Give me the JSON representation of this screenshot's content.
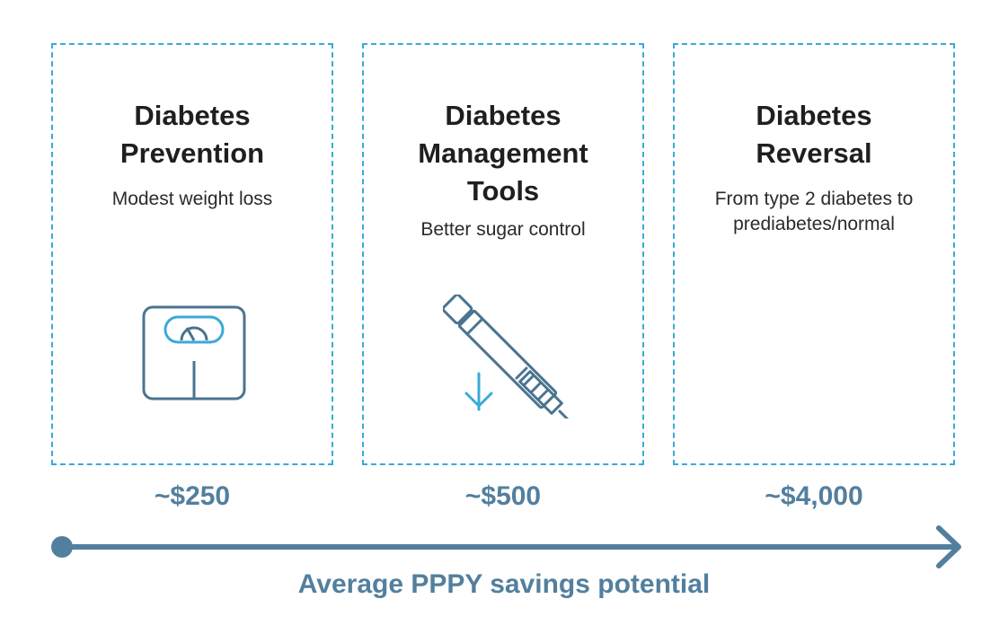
{
  "colors": {
    "card_border": "#3aaad8",
    "accent_blue": "#3aaad8",
    "icon_dark": "#4a7490",
    "timeline": "#537f9e",
    "text_dark": "#1f1f1f"
  },
  "cards": [
    {
      "title_lines": [
        "Diabetes",
        "Prevention"
      ],
      "subtitle_lines": [
        "Modest weight loss"
      ],
      "icon": "scale-icon",
      "price": "~$250"
    },
    {
      "title_lines": [
        "Diabetes",
        "Management",
        "Tools"
      ],
      "subtitle_lines": [
        "Better sugar control"
      ],
      "icon": "insulin-pen-icon",
      "price": "~$500"
    },
    {
      "title_lines": [
        "Diabetes",
        "Reversal"
      ],
      "subtitle_lines": [
        "From type 2 diabetes to",
        "prediabetes/normal"
      ],
      "icon": "",
      "price": "~$4,000"
    }
  ],
  "axis": {
    "label": "Average PPPY savings potential"
  }
}
